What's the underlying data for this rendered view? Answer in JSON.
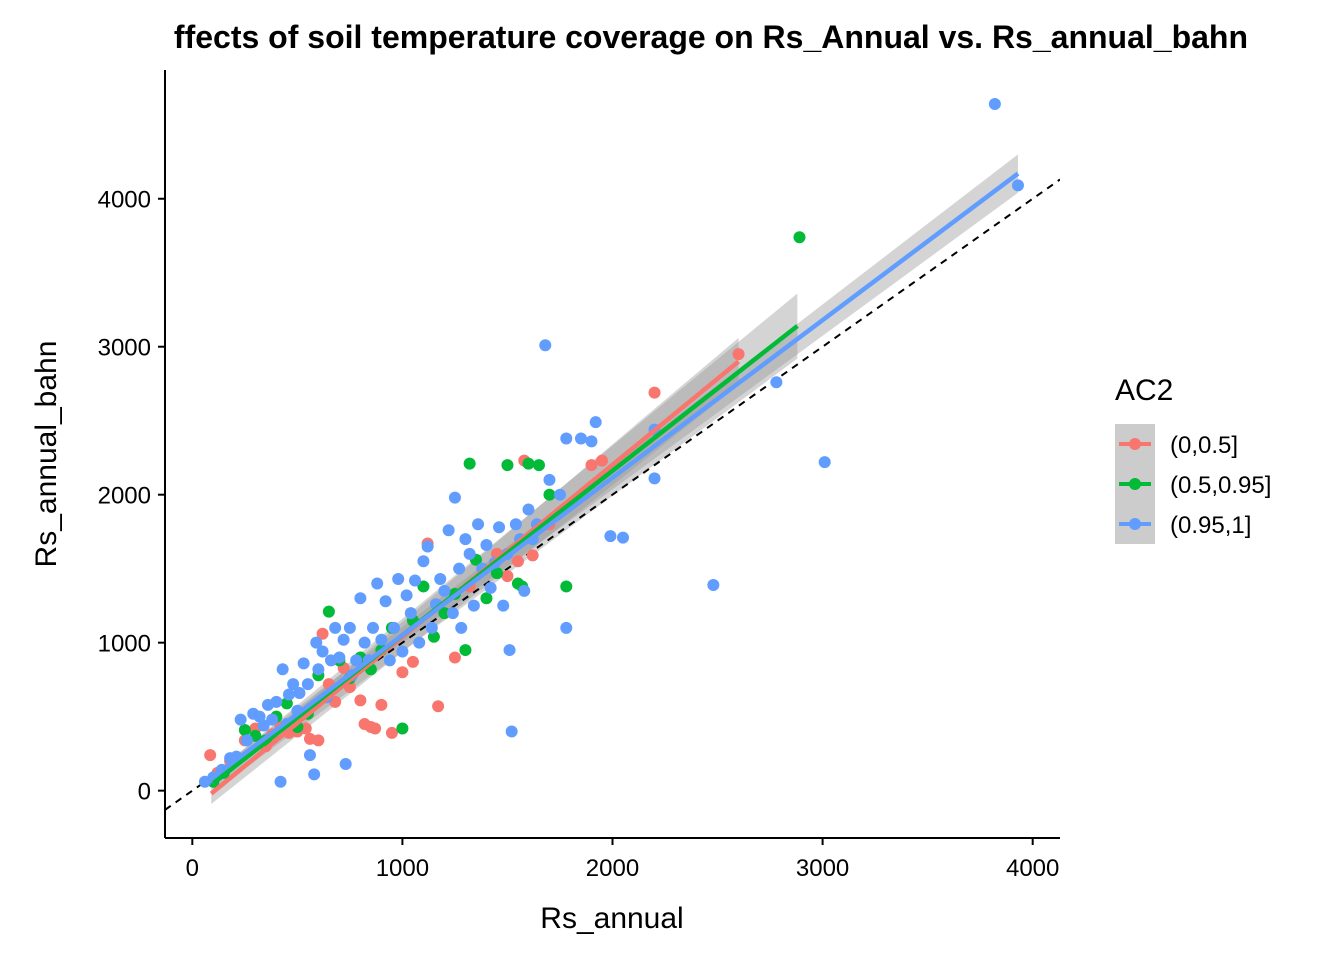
{
  "chart_data": {
    "type": "scatter",
    "title": "ffects of soil temperature coverage on Rs_Annual vs. Rs_annual_bahn",
    "xlabel": "Rs_annual",
    "ylabel": "Rs_annual_bahn",
    "xlim": [
      -130,
      4130
    ],
    "ylim": [
      -320,
      4870
    ],
    "xticks": [
      0,
      1000,
      2000,
      3000,
      4000
    ],
    "yticks": [
      0,
      1000,
      2000,
      3000,
      4000
    ],
    "grid": false,
    "legend": {
      "title": "AC2",
      "position": "right"
    },
    "reference_line": {
      "style": "dashed",
      "slope": 1,
      "intercept": 0,
      "color": "#000000"
    },
    "series": [
      {
        "name": "(0,0.5]",
        "color": "#F8766D",
        "fit": {
          "x": [
            90,
            2600
          ],
          "y": [
            -20,
            2900
          ],
          "ci_halfwidth": [
            70,
            160
          ]
        },
        "points": [
          [
            85,
            240
          ],
          [
            120,
            120
          ],
          [
            180,
            200
          ],
          [
            250,
            340
          ],
          [
            300,
            420
          ],
          [
            350,
            300
          ],
          [
            380,
            380
          ],
          [
            420,
            430
          ],
          [
            460,
            390
          ],
          [
            500,
            400
          ],
          [
            540,
            420
          ],
          [
            560,
            350
          ],
          [
            600,
            340
          ],
          [
            620,
            1060
          ],
          [
            650,
            720
          ],
          [
            680,
            600
          ],
          [
            720,
            830
          ],
          [
            750,
            700
          ],
          [
            800,
            610
          ],
          [
            820,
            450
          ],
          [
            850,
            430
          ],
          [
            870,
            420
          ],
          [
            900,
            580
          ],
          [
            950,
            390
          ],
          [
            1000,
            800
          ],
          [
            1050,
            870
          ],
          [
            1120,
            1670
          ],
          [
            1170,
            570
          ],
          [
            1250,
            900
          ],
          [
            1320,
            1380
          ],
          [
            1450,
            1600
          ],
          [
            1500,
            1450
          ],
          [
            1550,
            1550
          ],
          [
            1580,
            2230
          ],
          [
            1620,
            1590
          ],
          [
            1700,
            1800
          ],
          [
            1900,
            2200
          ],
          [
            1950,
            2230
          ],
          [
            2200,
            2690
          ],
          [
            2600,
            2950
          ]
        ]
      },
      {
        "name": "(0.5,0.95]",
        "color": "#00BA38",
        "fit": {
          "x": [
            100,
            2880
          ],
          "y": [
            50,
            3140
          ],
          "ci_halfwidth": [
            60,
            220
          ]
        },
        "points": [
          [
            100,
            60
          ],
          [
            150,
            120
          ],
          [
            250,
            410
          ],
          [
            300,
            370
          ],
          [
            350,
            340
          ],
          [
            400,
            500
          ],
          [
            450,
            590
          ],
          [
            500,
            430
          ],
          [
            550,
            520
          ],
          [
            600,
            780
          ],
          [
            650,
            1210
          ],
          [
            700,
            880
          ],
          [
            750,
            760
          ],
          [
            800,
            900
          ],
          [
            850,
            820
          ],
          [
            900,
            950
          ],
          [
            950,
            1100
          ],
          [
            1000,
            420
          ],
          [
            1050,
            1150
          ],
          [
            1100,
            1380
          ],
          [
            1150,
            1040
          ],
          [
            1200,
            1200
          ],
          [
            1250,
            1330
          ],
          [
            1300,
            950
          ],
          [
            1320,
            2210
          ],
          [
            1350,
            1560
          ],
          [
            1400,
            1300
          ],
          [
            1450,
            1470
          ],
          [
            1500,
            2200
          ],
          [
            1550,
            1400
          ],
          [
            1570,
            1380
          ],
          [
            1600,
            2210
          ],
          [
            1650,
            2200
          ],
          [
            1700,
            2000
          ],
          [
            1780,
            1380
          ],
          [
            2890,
            3740
          ]
        ]
      },
      {
        "name": "(0.95,1]",
        "color": "#619CFF",
        "fit": {
          "x": [
            60,
            3930
          ],
          "y": [
            50,
            4170
          ],
          "ci_halfwidth": [
            30,
            130
          ]
        },
        "points": [
          [
            60,
            60
          ],
          [
            100,
            90
          ],
          [
            140,
            140
          ],
          [
            180,
            220
          ],
          [
            210,
            230
          ],
          [
            230,
            480
          ],
          [
            260,
            340
          ],
          [
            290,
            520
          ],
          [
            320,
            500
          ],
          [
            340,
            440
          ],
          [
            360,
            580
          ],
          [
            380,
            480
          ],
          [
            400,
            600
          ],
          [
            420,
            60
          ],
          [
            430,
            820
          ],
          [
            450,
            450
          ],
          [
            460,
            650
          ],
          [
            480,
            720
          ],
          [
            500,
            540
          ],
          [
            510,
            660
          ],
          [
            530,
            860
          ],
          [
            550,
            720
          ],
          [
            560,
            240
          ],
          [
            580,
            110
          ],
          [
            590,
            1000
          ],
          [
            600,
            820
          ],
          [
            620,
            940
          ],
          [
            640,
            630
          ],
          [
            660,
            880
          ],
          [
            680,
            1100
          ],
          [
            700,
            900
          ],
          [
            720,
            1020
          ],
          [
            730,
            180
          ],
          [
            750,
            1100
          ],
          [
            760,
            780
          ],
          [
            780,
            880
          ],
          [
            800,
            1300
          ],
          [
            820,
            1000
          ],
          [
            840,
            880
          ],
          [
            860,
            1100
          ],
          [
            880,
            1400
          ],
          [
            900,
            1020
          ],
          [
            920,
            1280
          ],
          [
            940,
            880
          ],
          [
            960,
            1100
          ],
          [
            980,
            1430
          ],
          [
            1000,
            940
          ],
          [
            1020,
            1320
          ],
          [
            1040,
            1200
          ],
          [
            1060,
            1420
          ],
          [
            1080,
            1000
          ],
          [
            1100,
            1550
          ],
          [
            1120,
            1650
          ],
          [
            1140,
            1100
          ],
          [
            1160,
            1260
          ],
          [
            1180,
            1430
          ],
          [
            1200,
            1350
          ],
          [
            1220,
            1760
          ],
          [
            1240,
            1200
          ],
          [
            1250,
            1980
          ],
          [
            1270,
            1500
          ],
          [
            1280,
            1100
          ],
          [
            1300,
            1700
          ],
          [
            1320,
            1600
          ],
          [
            1340,
            1250
          ],
          [
            1360,
            1800
          ],
          [
            1380,
            1500
          ],
          [
            1400,
            1660
          ],
          [
            1420,
            1370
          ],
          [
            1440,
            1540
          ],
          [
            1460,
            1780
          ],
          [
            1480,
            1250
          ],
          [
            1500,
            1600
          ],
          [
            1510,
            950
          ],
          [
            1520,
            400
          ],
          [
            1540,
            1800
          ],
          [
            1560,
            1700
          ],
          [
            1580,
            1350
          ],
          [
            1600,
            1900
          ],
          [
            1620,
            1700
          ],
          [
            1640,
            1800
          ],
          [
            1680,
            3010
          ],
          [
            1700,
            2100
          ],
          [
            1750,
            2000
          ],
          [
            1780,
            1100
          ],
          [
            1780,
            2380
          ],
          [
            1850,
            2380
          ],
          [
            1900,
            2360
          ],
          [
            1920,
            2490
          ],
          [
            1990,
            1720
          ],
          [
            2050,
            1710
          ],
          [
            2200,
            2440
          ],
          [
            2200,
            2110
          ],
          [
            2480,
            1390
          ],
          [
            2780,
            2760
          ],
          [
            3010,
            2220
          ],
          [
            3820,
            4640
          ],
          [
            3930,
            4090
          ]
        ]
      }
    ]
  }
}
